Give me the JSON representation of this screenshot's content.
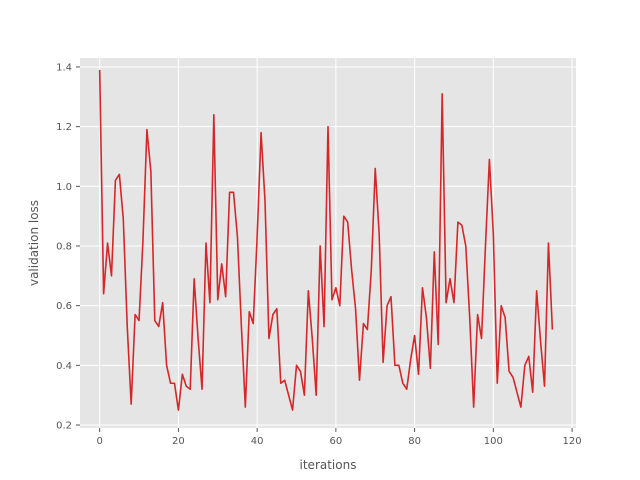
{
  "chart_data": {
    "type": "line",
    "title": "",
    "xlabel": "iterations",
    "ylabel": "validation loss",
    "xlim": [
      -5,
      121
    ],
    "ylim": [
      0.19,
      1.43
    ],
    "xticks": [
      0,
      20,
      40,
      60,
      80,
      100,
      120
    ],
    "xtick_labels": [
      "0",
      "20",
      "40",
      "60",
      "80",
      "100",
      "120"
    ],
    "yticks": [
      0.2,
      0.4,
      0.6,
      0.8,
      1.0,
      1.2,
      1.4
    ],
    "ytick_labels": [
      "0.2",
      "0.4",
      "0.6",
      "0.8",
      "1.0",
      "1.2",
      "1.4"
    ],
    "grid": true,
    "style": "ggplot",
    "colors": {
      "line": "#d62728",
      "panel": "#e5e5e5",
      "grid": "#ffffff",
      "text": "#555555"
    },
    "series": [
      {
        "x": [
          0,
          1,
          2,
          3,
          4,
          5,
          6,
          7,
          8,
          9,
          10,
          11,
          12,
          13,
          14,
          15,
          16,
          17,
          18,
          19,
          20,
          21,
          22,
          23,
          24,
          25,
          26,
          27,
          28,
          29,
          30,
          31,
          32,
          33,
          34,
          35,
          36,
          37,
          38,
          39,
          40,
          41,
          42,
          43,
          44,
          45,
          46,
          47,
          48,
          49,
          50,
          51,
          52,
          53,
          54,
          55,
          56,
          57,
          58,
          59,
          60,
          61,
          62,
          63,
          64,
          65,
          66,
          67,
          68,
          69,
          70,
          71,
          72,
          73,
          74,
          75,
          76,
          77,
          78,
          79,
          80,
          81,
          82,
          83,
          84,
          85,
          86,
          87,
          88,
          89,
          90,
          91,
          92,
          93,
          94,
          95,
          96,
          97,
          98,
          99,
          100,
          101,
          102,
          103,
          104,
          105,
          106,
          107,
          108,
          109,
          110,
          111,
          112,
          113,
          114,
          115
        ],
        "values": [
          1.39,
          0.64,
          0.81,
          0.7,
          1.02,
          1.04,
          0.89,
          0.53,
          0.27,
          0.57,
          0.55,
          0.82,
          1.19,
          1.05,
          0.55,
          0.53,
          0.61,
          0.4,
          0.34,
          0.34,
          0.25,
          0.37,
          0.33,
          0.32,
          0.69,
          0.49,
          0.32,
          0.81,
          0.61,
          1.24,
          0.62,
          0.74,
          0.63,
          0.98,
          0.98,
          0.83,
          0.53,
          0.26,
          0.58,
          0.54,
          0.83,
          1.18,
          0.95,
          0.49,
          0.57,
          0.59,
          0.34,
          0.35,
          0.3,
          0.25,
          0.4,
          0.38,
          0.3,
          0.65,
          0.49,
          0.3,
          0.8,
          0.53,
          1.2,
          0.62,
          0.66,
          0.6,
          0.9,
          0.88,
          0.72,
          0.59,
          0.35,
          0.54,
          0.52,
          0.72,
          1.06,
          0.84,
          0.41,
          0.6,
          0.63,
          0.4,
          0.4,
          0.34,
          0.32,
          0.42,
          0.5,
          0.37,
          0.66,
          0.56,
          0.39,
          0.78,
          0.47,
          1.31,
          0.61,
          0.69,
          0.61,
          0.88,
          0.87,
          0.8,
          0.56,
          0.26,
          0.57,
          0.49,
          0.8,
          1.09,
          0.84,
          0.34,
          0.6,
          0.56,
          0.38,
          0.36,
          0.31,
          0.26,
          0.4,
          0.43,
          0.31,
          0.65,
          0.48,
          0.33,
          0.81,
          0.52
        ]
      }
    ]
  }
}
